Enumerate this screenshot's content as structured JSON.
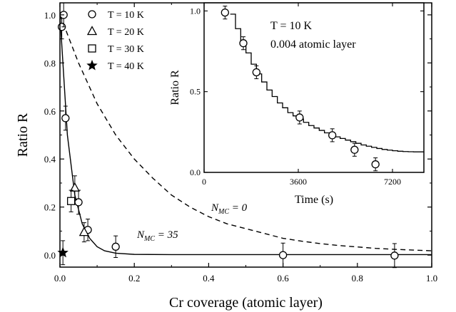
{
  "chart_data": [
    {
      "type": "scatter",
      "title": "",
      "xlabel": "Cr coverage (atomic layer)",
      "ylabel": "Ratio R",
      "xlim": [
        0,
        1.0
      ],
      "ylim": [
        -0.05,
        1.05
      ],
      "xticks": [
        0.0,
        0.2,
        0.4,
        0.6,
        0.8,
        1.0
      ],
      "xtick_labels": [
        "0.0",
        "0.2",
        "0.4",
        "0.6",
        "0.8",
        "1.0"
      ],
      "yticks": [
        0.0,
        0.2,
        0.4,
        0.6,
        0.8,
        1.0
      ],
      "ytick_labels": [
        "0.0",
        "0.2",
        "0.4",
        "0.6",
        "0.8",
        "1.0"
      ],
      "legend_placement": "top-left",
      "series": [
        {
          "name": "T = 10 K",
          "marker": "circle",
          "points": [
            {
              "x": 0.005,
              "y": 0.95,
              "err": 0.05
            },
            {
              "x": 0.01,
              "y": 1.0,
              "err": 0.05
            },
            {
              "x": 0.015,
              "y": 0.57,
              "err": 0.05
            },
            {
              "x": 0.05,
              "y": 0.22,
              "err": 0.05
            },
            {
              "x": 0.075,
              "y": 0.105,
              "err": 0.045
            },
            {
              "x": 0.15,
              "y": 0.035,
              "err": 0.045
            },
            {
              "x": 0.6,
              "y": 0.0,
              "err": 0.05
            },
            {
              "x": 0.9,
              "y": -0.002,
              "err": 0.05
            }
          ]
        },
        {
          "name": "T = 20 K",
          "marker": "triangle",
          "points": [
            {
              "x": 0.04,
              "y": 0.28,
              "err": 0.05
            },
            {
              "x": 0.065,
              "y": 0.095,
              "err": 0.04
            }
          ]
        },
        {
          "name": "T = 30 K",
          "marker": "square",
          "points": [
            {
              "x": 0.03,
              "y": 0.225,
              "err": 0.045
            }
          ]
        },
        {
          "name": "T = 40 K",
          "marker": "star",
          "points": [
            {
              "x": 0.008,
              "y": 0.01,
              "err": 0.05
            }
          ]
        }
      ],
      "curves": [
        {
          "name_prefix": "N",
          "name_subscript": "MC",
          "name_suffix": "= 35",
          "style": "solid",
          "x": [
            0.0,
            0.02,
            0.04,
            0.06,
            0.08,
            0.1,
            0.12,
            0.15,
            0.2,
            0.3,
            0.4,
            0.6,
            0.8,
            1.0
          ],
          "y": [
            1.0,
            0.5,
            0.25,
            0.13,
            0.07,
            0.035,
            0.018,
            0.008,
            0.003,
            0.002,
            0.002,
            0.002,
            0.002,
            0.002
          ]
        },
        {
          "name_prefix": "N",
          "name_subscript": "MC",
          "name_suffix": "= 0",
          "style": "dashed",
          "x": [
            0.0,
            0.05,
            0.1,
            0.15,
            0.2,
            0.25,
            0.3,
            0.35,
            0.4,
            0.45,
            0.5,
            0.55,
            0.6,
            0.65,
            0.7,
            0.75,
            0.8,
            0.85,
            0.9,
            0.95,
            1.0
          ],
          "y": [
            1.0,
            0.8,
            0.63,
            0.5,
            0.4,
            0.32,
            0.25,
            0.2,
            0.16,
            0.13,
            0.11,
            0.09,
            0.07,
            0.058,
            0.048,
            0.04,
            0.034,
            0.028,
            0.024,
            0.021,
            0.018
          ]
        }
      ]
    },
    {
      "type": "scatter",
      "title": "",
      "xlabel": "Time (s)",
      "ylabel": "Ratio R",
      "xlim": [
        0,
        8400
      ],
      "ylim": [
        0,
        1.05
      ],
      "xticks": [
        0,
        3600,
        7200
      ],
      "xtick_labels": [
        "0",
        "3600",
        "7200"
      ],
      "yticks": [
        0.0,
        0.5,
        1.0
      ],
      "ytick_labels": [
        "0.0",
        "0.5",
        "1.0"
      ],
      "annotations": [
        "T = 10 K",
        "0.004 atomic layer"
      ],
      "series": [
        {
          "marker": "circle",
          "points": [
            {
              "x": 800,
              "y": 0.99,
              "err": 0.04
            },
            {
              "x": 1500,
              "y": 0.8,
              "err": 0.04
            },
            {
              "x": 2000,
              "y": 0.62,
              "err": 0.04
            },
            {
              "x": 3650,
              "y": 0.34,
              "err": 0.04
            },
            {
              "x": 4900,
              "y": 0.23,
              "err": 0.04
            },
            {
              "x": 5750,
              "y": 0.14,
              "err": 0.04
            },
            {
              "x": 6550,
              "y": 0.05,
              "err": 0.04
            }
          ]
        }
      ],
      "curves": [
        {
          "style": "step",
          "x": [
            1000,
            1200,
            1400,
            1600,
            1800,
            2000,
            2200,
            2400,
            2600,
            2800,
            3000,
            3200,
            3400,
            3600,
            3800,
            4000,
            4200,
            4400,
            4600,
            4800,
            5000,
            5200,
            5400,
            5600,
            5800,
            6000,
            6200,
            6400,
            6600,
            6800,
            7000,
            7200,
            7400,
            7600,
            7800,
            8000,
            8200,
            8400
          ],
          "y": [
            0.98,
            0.89,
            0.81,
            0.74,
            0.67,
            0.61,
            0.56,
            0.51,
            0.47,
            0.43,
            0.4,
            0.37,
            0.35,
            0.33,
            0.31,
            0.29,
            0.275,
            0.26,
            0.245,
            0.23,
            0.22,
            0.21,
            0.2,
            0.19,
            0.18,
            0.17,
            0.162,
            0.155,
            0.148,
            0.142,
            0.138,
            0.134,
            0.131,
            0.129,
            0.128,
            0.127,
            0.127,
            0.127
          ]
        }
      ]
    }
  ]
}
